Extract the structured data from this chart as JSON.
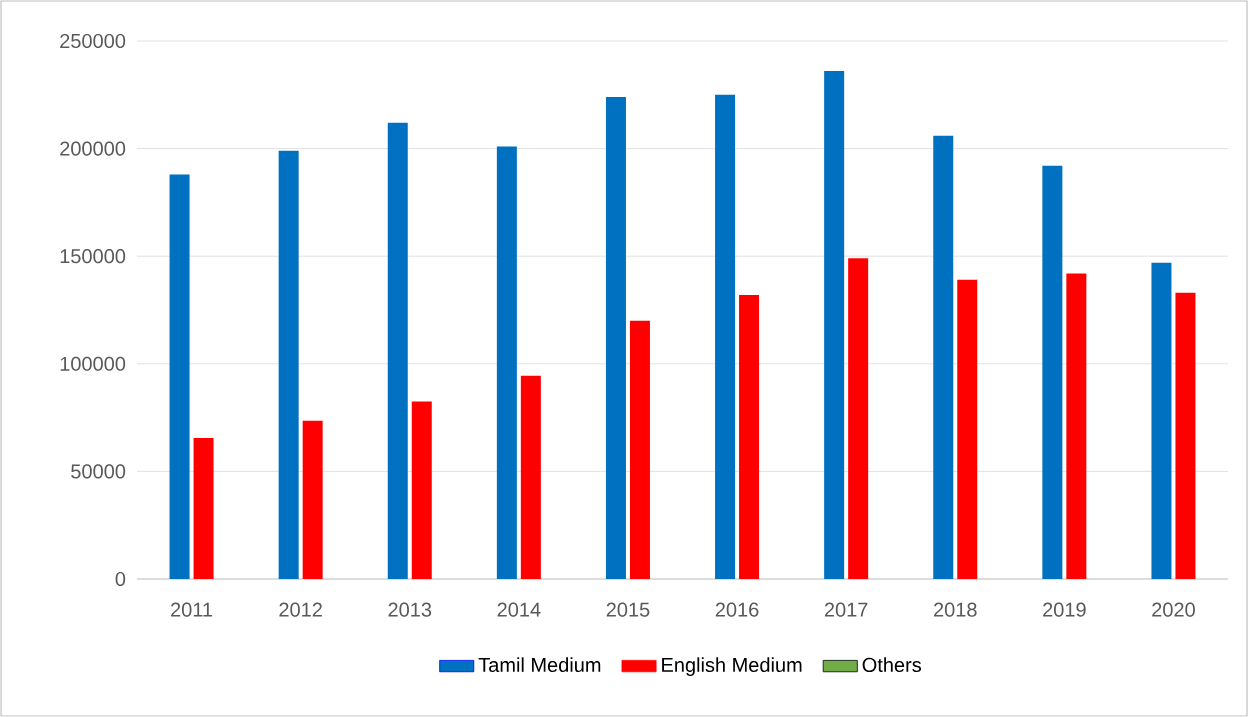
{
  "chart_data": {
    "type": "bar",
    "categories": [
      "2011",
      "2012",
      "2013",
      "2014",
      "2015",
      "2016",
      "2017",
      "2018",
      "2019",
      "2020"
    ],
    "series": [
      {
        "name": "Tamil Medium",
        "color": "#0070c0",
        "values": [
          188000,
          199000,
          212000,
          201000,
          224000,
          225000,
          236000,
          206000,
          192000,
          147000
        ]
      },
      {
        "name": "English Medium",
        "color": "#ff0000",
        "values": [
          65500,
          73500,
          82500,
          94500,
          120000,
          132000,
          149000,
          139000,
          142000,
          133000
        ]
      },
      {
        "name": "Others",
        "color": "#70ad47",
        "values": [
          null,
          null,
          null,
          null,
          null,
          null,
          null,
          null,
          null,
          null
        ]
      }
    ],
    "ylim": [
      0,
      250000
    ],
    "yticks": [
      0,
      50000,
      100000,
      150000,
      200000,
      250000
    ],
    "grid": "y",
    "legend": "bottom"
  }
}
